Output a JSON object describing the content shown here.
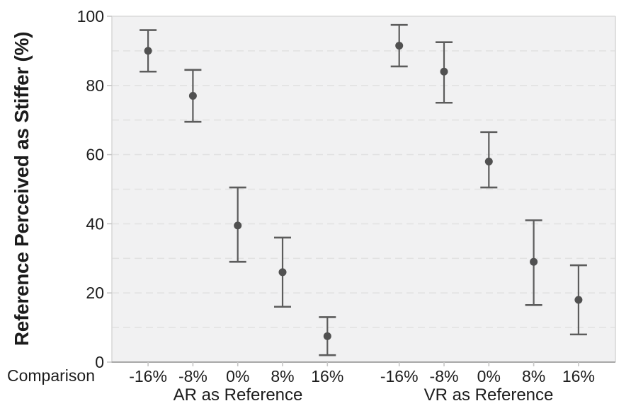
{
  "chart_data": {
    "type": "scatter",
    "subtype": "point-estimates-with-error-bars",
    "ylabel": "Reference Perceived as Stiffer (%)",
    "xlabel": "Comparison",
    "ylim": [
      0,
      100
    ],
    "y_ticks": [
      0,
      20,
      40,
      60,
      80,
      100
    ],
    "grid": "horizontal dashed every 10",
    "legend": "none",
    "groups": [
      {
        "label": "AR as Reference",
        "categories": [
          "-16%",
          "-8%",
          "0%",
          "8%",
          "16%"
        ],
        "means": [
          90,
          77,
          39.5,
          26,
          7.5
        ],
        "ci_low": [
          84,
          69.5,
          29,
          16,
          2
        ],
        "ci_high": [
          96,
          84.5,
          50.5,
          36,
          13
        ]
      },
      {
        "label": "VR as Reference",
        "categories": [
          "-16%",
          "-8%",
          "0%",
          "8%",
          "16%"
        ],
        "means": [
          91.5,
          84,
          58,
          29,
          18
        ],
        "ci_low": [
          85.5,
          75,
          50.5,
          16.5,
          8
        ],
        "ci_high": [
          97.5,
          92.5,
          66.5,
          41,
          28
        ]
      }
    ],
    "colors": {
      "point": "#515151",
      "error_bar": "#5c5c5c",
      "plot_bg": "#f1f1f2",
      "gridline": "#e2e2e2",
      "border": "#d9d9d9",
      "axis_line": "#a8a8a8",
      "tick": "#c6c6c6",
      "text": "#1d1d1d"
    }
  }
}
